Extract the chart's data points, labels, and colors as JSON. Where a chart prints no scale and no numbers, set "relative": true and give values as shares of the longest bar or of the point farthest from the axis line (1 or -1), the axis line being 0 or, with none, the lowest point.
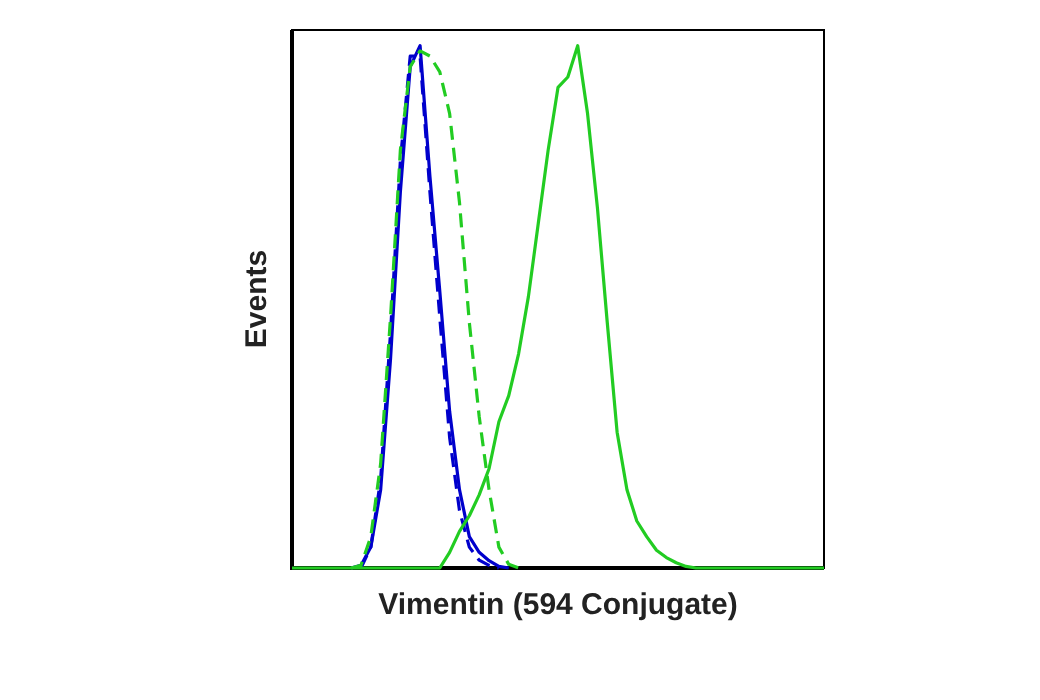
{
  "chart_data": {
    "type": "line",
    "relative": true,
    "xlabel": "Vimentin (594 Conjugate)",
    "ylabel": "Events",
    "legend": false,
    "grid": false,
    "marker": "none",
    "categories": [
      null,
      null,
      null,
      null,
      null,
      null,
      null,
      null,
      null,
      null,
      null,
      null,
      null,
      null,
      null,
      null,
      null,
      null,
      null,
      null,
      null,
      null,
      null,
      null,
      null,
      null,
      null,
      null,
      null,
      null,
      null,
      null,
      null,
      null,
      null,
      null,
      null,
      null,
      null,
      null,
      null,
      null,
      null,
      null,
      null,
      null,
      null,
      null,
      null,
      null,
      null,
      null,
      null,
      null,
      null
    ],
    "series": [
      {
        "color": "#22cc22",
        "line_style": "solid",
        "values": [
          0,
          0,
          0,
          0,
          0,
          0,
          0,
          0,
          0,
          0,
          0,
          0,
          0,
          0,
          0,
          0,
          0.03,
          0.07,
          0.1,
          0.14,
          0.19,
          0.28,
          0.33,
          0.41,
          0.52,
          0.66,
          0.8,
          0.92,
          0.94,
          1,
          0.87,
          0.69,
          0.47,
          0.26,
          0.15,
          0.09,
          0.06,
          0.034,
          0.02,
          0.01,
          0.003,
          0,
          0,
          0,
          0,
          0,
          0,
          0,
          0,
          0,
          0,
          0,
          0,
          0,
          0
        ]
      },
      {
        "color": "#22cc22",
        "line_style": "dashed",
        "values": [
          null,
          null,
          null,
          null,
          null,
          null,
          0,
          0.005,
          0.06,
          0.2,
          0.48,
          0.8,
          0.96,
          0.99,
          0.98,
          0.95,
          0.87,
          0.7,
          0.47,
          0.29,
          0.15,
          0.04,
          0.007,
          0,
          null,
          null,
          null,
          null,
          null,
          null,
          null,
          null,
          null,
          null,
          null,
          null,
          null,
          null,
          null,
          null,
          null,
          null,
          null,
          null,
          null,
          null,
          null,
          null,
          null,
          null,
          null,
          null,
          null,
          null,
          null
        ]
      },
      {
        "color": "#0000cc",
        "line_style": "dashed",
        "values": [
          null,
          null,
          null,
          null,
          null,
          null,
          null,
          0,
          0.04,
          0.17,
          0.45,
          0.78,
          0.98,
          0.98,
          0.72,
          0.48,
          0.25,
          0.11,
          0.04,
          0.015,
          0.005,
          0,
          null,
          null,
          null,
          null,
          null,
          null,
          null,
          null,
          null,
          null,
          null,
          null,
          null,
          null,
          null,
          null,
          null,
          null,
          null,
          null,
          null,
          null,
          null,
          null,
          null,
          null,
          null,
          null,
          null,
          null,
          null,
          null,
          null
        ]
      },
      {
        "color": "#0000cc",
        "line_style": "solid",
        "values": [
          null,
          null,
          null,
          null,
          null,
          null,
          0,
          0.005,
          0.04,
          0.15,
          0.4,
          0.72,
          0.96,
          1,
          0.75,
          0.53,
          0.3,
          0.15,
          0.06,
          0.03,
          0.014,
          0.003,
          0,
          null,
          null,
          null,
          null,
          null,
          null,
          null,
          null,
          null,
          null,
          null,
          null,
          null,
          null,
          null,
          null,
          null,
          null,
          null,
          null,
          null,
          null,
          null,
          null,
          null,
          null,
          null,
          null,
          null,
          null,
          null,
          null
        ]
      }
    ]
  }
}
